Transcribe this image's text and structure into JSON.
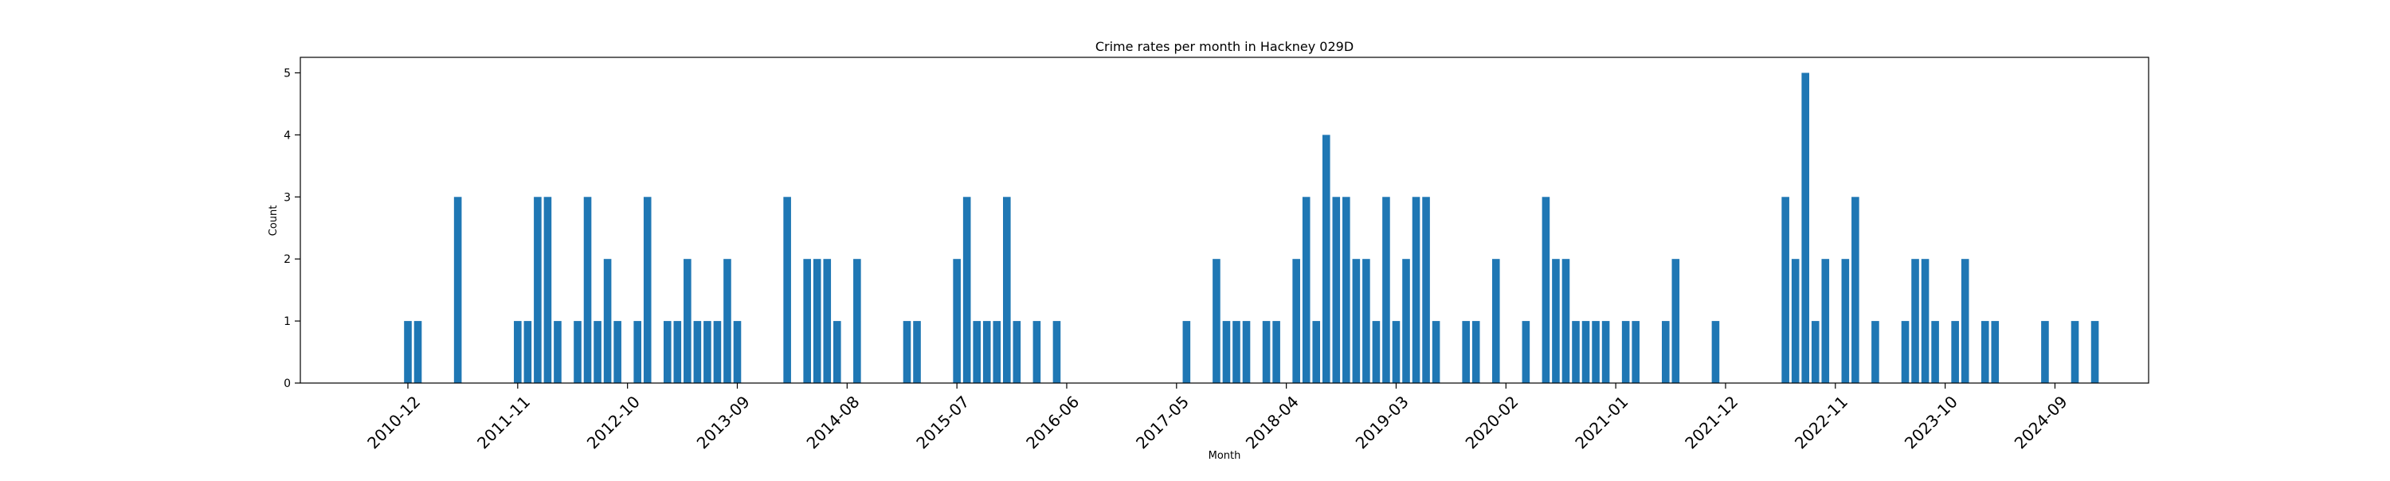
{
  "chart_data": {
    "type": "bar",
    "title": "Crime rates per month in Hackney 029D",
    "xlabel": "Month",
    "ylabel": "Count",
    "bar_color": "#1f77b4",
    "ylim": [
      0,
      5.25
    ],
    "y_ticks": [
      0,
      1,
      2,
      3,
      4,
      5
    ],
    "grid": false,
    "x_tick_labels": [
      "2010-12",
      "2011-11",
      "2012-10",
      "2013-09",
      "2014-08",
      "2015-07",
      "2016-06",
      "2017-05",
      "2018-04",
      "2019-03",
      "2020-02",
      "2021-01",
      "2021-12",
      "2022-11",
      "2023-10",
      "2024-09"
    ],
    "categories": [
      "2010-12",
      "2011-01",
      "2011-05",
      "2011-11",
      "2011-12",
      "2012-01",
      "2012-02",
      "2012-03",
      "2012-05",
      "2012-06",
      "2012-07",
      "2012-08",
      "2012-09",
      "2012-11",
      "2012-12",
      "2013-02",
      "2013-03",
      "2013-04",
      "2013-05",
      "2013-06",
      "2013-07",
      "2013-08",
      "2013-09",
      "2014-02",
      "2014-04",
      "2014-05",
      "2014-06",
      "2014-07",
      "2014-09",
      "2015-02",
      "2015-03",
      "2015-07",
      "2015-08",
      "2015-09",
      "2015-10",
      "2015-11",
      "2015-12",
      "2016-01",
      "2016-03",
      "2016-05",
      "2017-06",
      "2017-09",
      "2017-10",
      "2017-11",
      "2017-12",
      "2018-02",
      "2018-03",
      "2018-05",
      "2018-06",
      "2018-07",
      "2018-08",
      "2018-09",
      "2018-10",
      "2018-11",
      "2018-12",
      "2019-01",
      "2019-02",
      "2019-03",
      "2019-04",
      "2019-05",
      "2019-06",
      "2019-07",
      "2019-10",
      "2019-11",
      "2020-01",
      "2020-04",
      "2020-06",
      "2020-07",
      "2020-08",
      "2020-09",
      "2020-10",
      "2020-11",
      "2020-12",
      "2021-02",
      "2021-03",
      "2021-06",
      "2021-07",
      "2021-11",
      "2022-06",
      "2022-07",
      "2022-08",
      "2022-09",
      "2022-10",
      "2022-12",
      "2023-01",
      "2023-03",
      "2023-06",
      "2023-07",
      "2023-08",
      "2023-09",
      "2023-11",
      "2023-12",
      "2024-02",
      "2024-03",
      "2024-08",
      "2024-11",
      "2025-01"
    ],
    "values": [
      1,
      1,
      3,
      1,
      1,
      3,
      3,
      1,
      1,
      3,
      1,
      2,
      1,
      1,
      3,
      1,
      1,
      2,
      1,
      1,
      1,
      2,
      1,
      3,
      2,
      2,
      2,
      1,
      2,
      1,
      1,
      2,
      3,
      1,
      1,
      1,
      3,
      1,
      1,
      1,
      1,
      2,
      1,
      1,
      1,
      1,
      1,
      2,
      3,
      1,
      4,
      3,
      3,
      2,
      2,
      1,
      3,
      1,
      2,
      3,
      3,
      1,
      1,
      1,
      2,
      1,
      3,
      2,
      2,
      1,
      1,
      1,
      1,
      1,
      1,
      1,
      2,
      1,
      3,
      2,
      5,
      1,
      2,
      2,
      3,
      1,
      1,
      2,
      2,
      1,
      1,
      2,
      1,
      1,
      1,
      1,
      1
    ]
  }
}
